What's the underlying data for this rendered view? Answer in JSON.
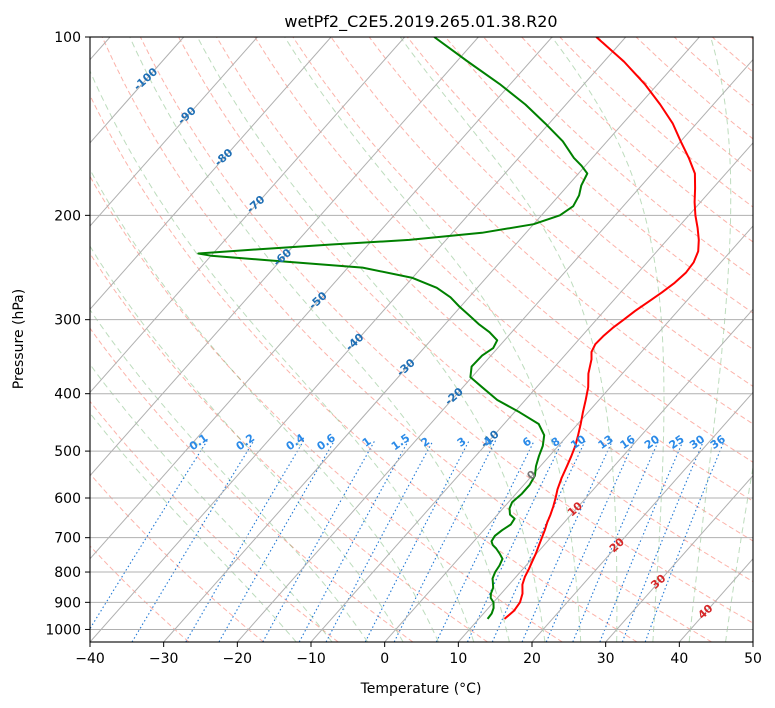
{
  "chart_data": {
    "type": "line",
    "title": "wetPf2_C2E5.2019.265.01.38.R20",
    "xlabel": "Temperature (°C)",
    "ylabel": "Pressure (hPa)",
    "xlim": [
      -40,
      50
    ],
    "ylim": [
      1050,
      100
    ],
    "y_scale": "log",
    "grid": true,
    "x_ticks": [
      -40,
      -30,
      -20,
      -10,
      0,
      10,
      20,
      30,
      40,
      50
    ],
    "y_ticks": [
      1000,
      900,
      800,
      700,
      600,
      500,
      400,
      300,
      200,
      100
    ],
    "isotherm_labels": [
      "-100",
      "-90",
      "-80",
      "-70",
      "-60",
      "-50",
      "-40",
      "-30",
      "-20",
      "-10",
      "0",
      "10",
      "20",
      "30",
      "40"
    ],
    "mixing_ratio_labels": [
      "0.1",
      "0.2",
      "0.4",
      "0.6",
      "1",
      "1.5",
      "2",
      "3",
      "4",
      "6",
      "8",
      "10",
      "13",
      "16",
      "20",
      "25",
      "30",
      "36"
    ],
    "series": [
      {
        "color": "#ff0000",
        "points": [
          [
            13.5,
            960
          ],
          [
            13.8,
            930
          ],
          [
            13.6,
            900
          ],
          [
            12.9,
            870
          ],
          [
            11.8,
            840
          ],
          [
            11.2,
            815
          ],
          [
            10.8,
            790
          ],
          [
            10.4,
            770
          ],
          [
            9.9,
            745
          ],
          [
            9.3,
            720
          ],
          [
            8.8,
            700
          ],
          [
            8.3,
            680
          ],
          [
            7.7,
            660
          ],
          [
            7.2,
            640
          ],
          [
            6.6,
            620
          ],
          [
            5.9,
            600
          ],
          [
            5.1,
            580
          ],
          [
            4.3,
            555
          ],
          [
            3.6,
            530
          ],
          [
            3.0,
            510
          ],
          [
            2.3,
            490
          ],
          [
            1.4,
            470
          ],
          [
            0.4,
            450
          ],
          [
            -0.7,
            430
          ],
          [
            -1.8,
            410
          ],
          [
            -3.0,
            390
          ],
          [
            -4.6,
            370
          ],
          [
            -5.9,
            350
          ],
          [
            -6.8,
            340
          ],
          [
            -7.2,
            330
          ],
          [
            -7.1,
            320
          ],
          [
            -6.8,
            310
          ],
          [
            -6.3,
            300
          ],
          [
            -5.8,
            290
          ],
          [
            -5.1,
            280
          ],
          [
            -4.4,
            270
          ],
          [
            -3.8,
            260
          ],
          [
            -3.5,
            250
          ],
          [
            -3.7,
            240
          ],
          [
            -4.4,
            230
          ],
          [
            -5.7,
            220
          ],
          [
            -7.3,
            210
          ],
          [
            -9.1,
            200
          ],
          [
            -10.8,
            190
          ],
          [
            -12.4,
            180
          ],
          [
            -14.2,
            170
          ],
          [
            -16.9,
            160
          ],
          [
            -20.0,
            150
          ],
          [
            -23.2,
            140
          ],
          [
            -27.2,
            130
          ],
          [
            -31.8,
            120
          ],
          [
            -37.3,
            110
          ],
          [
            -44.0,
            100
          ]
        ]
      },
      {
        "color": "#008000",
        "points": [
          [
            11.2,
            960
          ],
          [
            11.1,
            940
          ],
          [
            10.7,
            920
          ],
          [
            10.0,
            900
          ],
          [
            9.1,
            885
          ],
          [
            8.6,
            870
          ],
          [
            8.2,
            850
          ],
          [
            7.6,
            835
          ],
          [
            7.0,
            820
          ],
          [
            6.6,
            800
          ],
          [
            6.4,
            780
          ],
          [
            6.0,
            760
          ],
          [
            5.0,
            745
          ],
          [
            3.9,
            730
          ],
          [
            3.0,
            720
          ],
          [
            2.4,
            710
          ],
          [
            2.2,
            695
          ],
          [
            2.5,
            680
          ],
          [
            3.0,
            665
          ],
          [
            2.8,
            650
          ],
          [
            1.7,
            640
          ],
          [
            0.9,
            625
          ],
          [
            0.5,
            610
          ],
          [
            0.8,
            590
          ],
          [
            0.8,
            570
          ],
          [
            0.4,
            550
          ],
          [
            -0.6,
            530
          ],
          [
            -1.4,
            510
          ],
          [
            -2.1,
            490
          ],
          [
            -3.2,
            470
          ],
          [
            -5.3,
            450
          ],
          [
            -9.3,
            430
          ],
          [
            -13.8,
            410
          ],
          [
            -17.4,
            390
          ],
          [
            -20.2,
            375
          ],
          [
            -21.3,
            360
          ],
          [
            -21.2,
            345
          ],
          [
            -20.6,
            335
          ],
          [
            -21.0,
            325
          ],
          [
            -23.0,
            315
          ],
          [
            -25.5,
            305
          ],
          [
            -27.8,
            295
          ],
          [
            -30.2,
            285
          ],
          [
            -32.5,
            275
          ],
          [
            -35.5,
            265
          ],
          [
            -40.0,
            255
          ],
          [
            -48.0,
            245
          ],
          [
            -62.0,
            238
          ],
          [
            -70.0,
            234
          ],
          [
            -72.0,
            232
          ],
          [
            -64.0,
            228
          ],
          [
            -55.0,
            224
          ],
          [
            -45.0,
            220
          ],
          [
            -36.0,
            214
          ],
          [
            -30.0,
            207
          ],
          [
            -27.5,
            200
          ],
          [
            -26.8,
            193
          ],
          [
            -27.3,
            185
          ],
          [
            -28.2,
            178
          ],
          [
            -28.8,
            170
          ],
          [
            -30.5,
            165
          ],
          [
            -32.5,
            160
          ],
          [
            -36.0,
            150
          ],
          [
            -40.5,
            140
          ],
          [
            -45.5,
            130
          ],
          [
            -51.5,
            120
          ],
          [
            -58.5,
            110
          ],
          [
            -66.0,
            100
          ]
        ]
      }
    ]
  }
}
